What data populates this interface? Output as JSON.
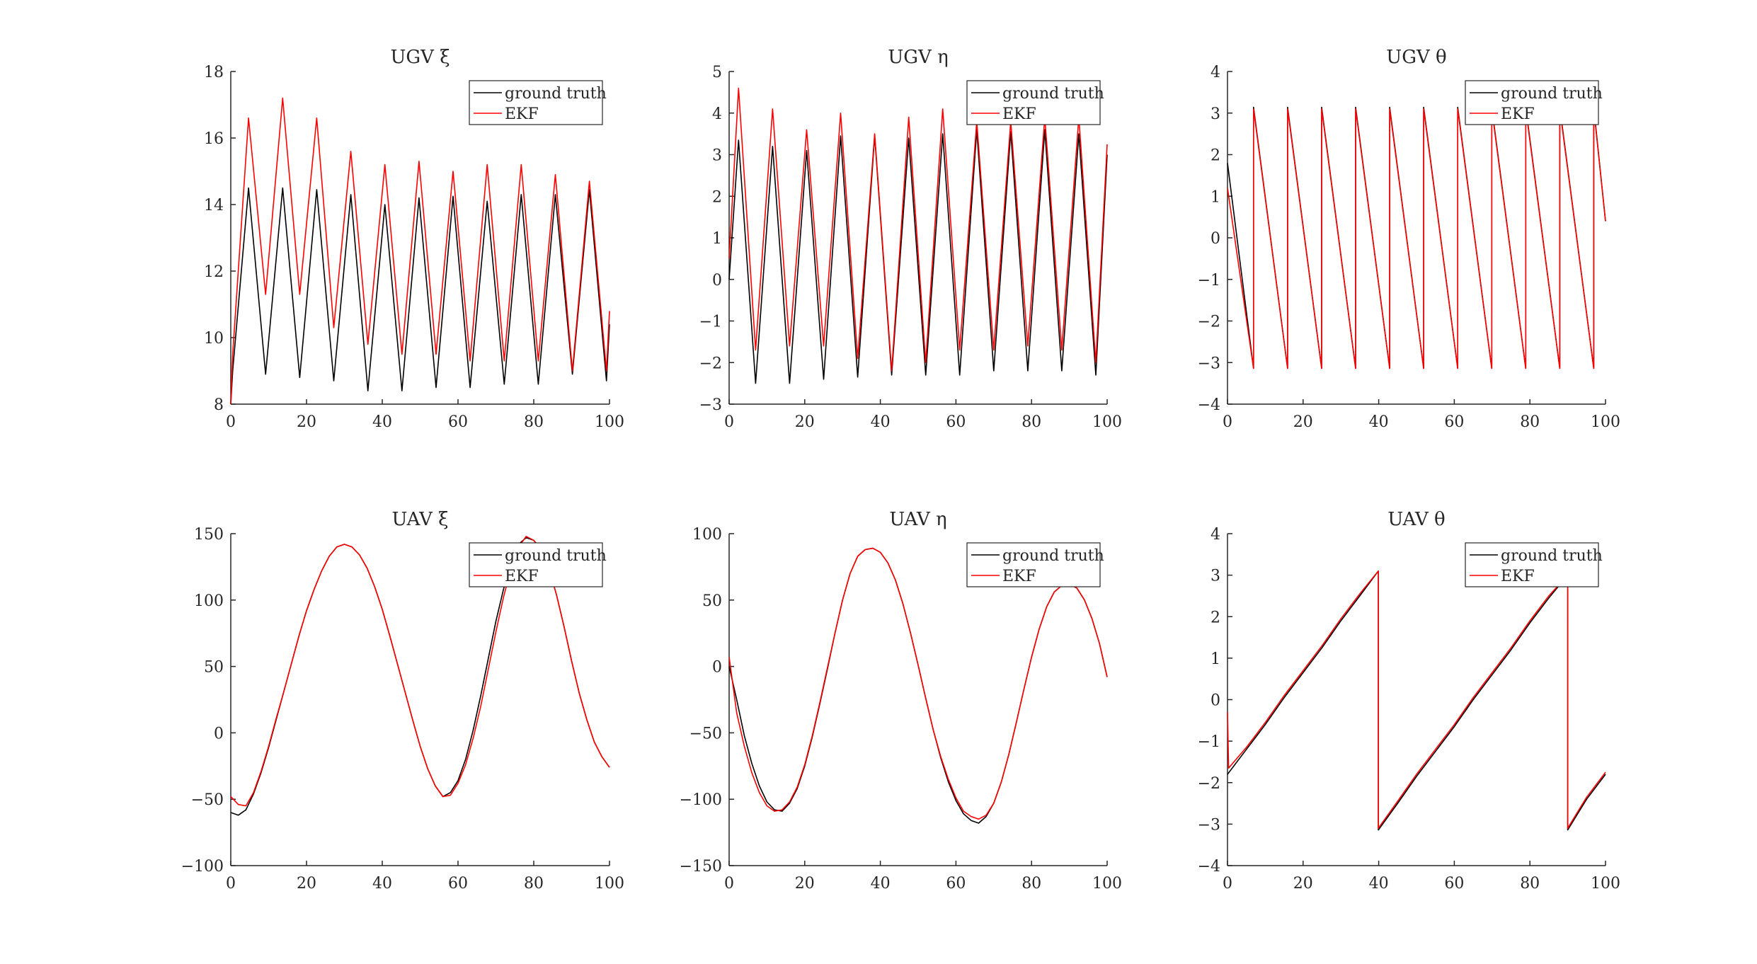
{
  "chart_data": [
    {
      "type": "line",
      "title": "UGV ξ",
      "xlim": [
        0,
        100
      ],
      "ylim": [
        8,
        18
      ],
      "xticks": [
        0,
        20,
        40,
        60,
        80,
        100
      ],
      "yticks": [
        8,
        10,
        12,
        14,
        16,
        18
      ],
      "legend_position": "top-right",
      "series": [
        {
          "name": "ground truth",
          "color": "#000000",
          "x": [
            0,
            0.5,
            4.7,
            9.2,
            13.7,
            18.2,
            22.7,
            27.2,
            31.7,
            36.2,
            40.7,
            45.2,
            49.7,
            54.2,
            58.7,
            63.2,
            67.7,
            72.2,
            76.7,
            81.2,
            85.7,
            90.2,
            94.7,
            99.2,
            100
          ],
          "y": [
            8.0,
            9.0,
            14.5,
            8.9,
            14.5,
            8.8,
            14.45,
            8.7,
            14.3,
            8.4,
            14.0,
            8.4,
            14.2,
            8.5,
            14.25,
            8.5,
            14.1,
            8.6,
            14.3,
            8.6,
            14.3,
            8.9,
            14.45,
            8.7,
            10.4
          ]
        },
        {
          "name": "EKF",
          "color": "#ff0000",
          "x": [
            0,
            0.5,
            4.7,
            9.2,
            13.7,
            18.2,
            22.7,
            27.2,
            31.7,
            36.2,
            40.7,
            45.2,
            49.7,
            54.2,
            58.7,
            63.2,
            67.7,
            72.2,
            76.7,
            81.2,
            85.7,
            90.2,
            94.7,
            99.2,
            100
          ],
          "y": [
            8.0,
            9.5,
            16.6,
            11.3,
            17.2,
            11.3,
            16.6,
            10.3,
            15.6,
            9.8,
            15.2,
            9.5,
            15.3,
            9.5,
            15.0,
            9.3,
            15.2,
            9.3,
            15.2,
            9.3,
            14.9,
            9.0,
            14.7,
            9.0,
            10.8
          ]
        }
      ]
    },
    {
      "type": "line",
      "title": "UGV η",
      "xlim": [
        0,
        100
      ],
      "ylim": [
        -3,
        5
      ],
      "xticks": [
        0,
        20,
        40,
        60,
        80,
        100
      ],
      "yticks": [
        -3,
        -2,
        -1,
        0,
        1,
        2,
        3,
        4,
        5
      ],
      "legend_position": "top-right",
      "series": [
        {
          "name": "ground truth",
          "color": "#000000",
          "x": [
            0,
            2.5,
            7,
            11.5,
            16,
            20.5,
            25,
            29.5,
            34,
            38.5,
            43,
            47.5,
            52,
            56.5,
            61,
            65.5,
            70,
            74.5,
            79,
            83.5,
            88,
            92.5,
            97,
            100
          ],
          "y": [
            0,
            3.35,
            -2.5,
            3.2,
            -2.5,
            3.1,
            -2.4,
            3.45,
            -2.35,
            3.45,
            -2.3,
            3.4,
            -2.3,
            3.5,
            -2.3,
            3.6,
            -2.2,
            3.55,
            -2.2,
            3.6,
            -2.2,
            3.5,
            -2.3,
            3.0
          ]
        },
        {
          "name": "EKF",
          "color": "#ff0000",
          "x": [
            0,
            2.5,
            7,
            11.5,
            16,
            20.5,
            25,
            29.5,
            34,
            38.5,
            43,
            47.5,
            52,
            56.5,
            61,
            65.5,
            70,
            74.5,
            79,
            83.5,
            88,
            92.5,
            97,
            100
          ],
          "y": [
            0.5,
            4.6,
            -1.7,
            4.1,
            -1.6,
            3.6,
            -1.6,
            4.0,
            -1.9,
            3.5,
            -2.2,
            3.9,
            -2.0,
            4.1,
            -1.7,
            3.8,
            -1.7,
            3.8,
            -1.6,
            3.9,
            -1.7,
            3.9,
            -2.0,
            3.25
          ]
        }
      ]
    },
    {
      "type": "line",
      "title": "UGV θ",
      "xlim": [
        0,
        100
      ],
      "ylim": [
        -4,
        4
      ],
      "xticks": [
        0,
        20,
        40,
        60,
        80,
        100
      ],
      "yticks": [
        -4,
        -3,
        -2,
        -1,
        0,
        1,
        2,
        3,
        4
      ],
      "legend_position": "top-right",
      "series": [
        {
          "name": "ground truth",
          "color": "#000000",
          "x": [
            0,
            6.9,
            6.9,
            15.9,
            15.9,
            24.9,
            24.9,
            33.9,
            33.9,
            42.9,
            42.9,
            51.9,
            51.9,
            60.9,
            60.9,
            69.9,
            69.9,
            78.9,
            78.9,
            87.9,
            87.9,
            96.9,
            96.9,
            100
          ],
          "y": [
            1.8,
            -3.14,
            3.14,
            -3.14,
            3.14,
            -3.14,
            3.14,
            -3.14,
            3.14,
            -3.14,
            3.14,
            -3.14,
            3.14,
            -3.14,
            3.14,
            -3.14,
            3.14,
            -3.14,
            3.14,
            -3.14,
            3.14,
            -3.14,
            3.14,
            0.4
          ]
        },
        {
          "name": "EKF",
          "color": "#ff0000",
          "x": [
            0,
            6.9,
            6.9,
            15.9,
            15.9,
            24.9,
            24.9,
            33.9,
            33.9,
            42.9,
            42.9,
            51.9,
            51.9,
            60.9,
            60.9,
            69.9,
            69.9,
            78.9,
            78.9,
            87.9,
            87.9,
            96.9,
            96.9,
            100
          ],
          "y": [
            1.2,
            -3.14,
            3.1,
            -3.14,
            3.1,
            -3.14,
            3.1,
            -3.14,
            3.1,
            -3.14,
            3.1,
            -3.14,
            3.1,
            -3.14,
            3.1,
            -3.14,
            3.1,
            -3.14,
            3.1,
            -3.14,
            3.1,
            -3.14,
            3.1,
            0.4
          ]
        }
      ]
    },
    {
      "type": "line",
      "title": "UAV ξ",
      "xlim": [
        0,
        100
      ],
      "ylim": [
        -100,
        150
      ],
      "xticks": [
        0,
        20,
        40,
        60,
        80,
        100
      ],
      "yticks": [
        -100,
        -50,
        0,
        50,
        100,
        150
      ],
      "legend_position": "top-right",
      "series": [
        {
          "name": "ground truth",
          "color": "#000000",
          "x": [
            0,
            2,
            4,
            6,
            8,
            10,
            12,
            14,
            16,
            18,
            20,
            22,
            24,
            26,
            28,
            30,
            32,
            34,
            36,
            38,
            40,
            42,
            44,
            46,
            48,
            50,
            52,
            54,
            56,
            58,
            60,
            62,
            64,
            66,
            68,
            70,
            72,
            74,
            76,
            78,
            80,
            82,
            84,
            86,
            88,
            90,
            92,
            94,
            96,
            98,
            100
          ],
          "y": [
            -60,
            -62,
            -58,
            -46,
            -30,
            -11,
            10,
            31,
            52,
            73,
            92,
            108,
            122,
            133,
            140,
            142,
            140,
            134,
            124,
            110,
            93,
            73,
            52,
            31,
            10,
            -10,
            -27,
            -40,
            -48,
            -45,
            -36,
            -20,
            2,
            28,
            56,
            84,
            108,
            128,
            142,
            147,
            145,
            138,
            124,
            104,
            80,
            54,
            30,
            10,
            -7,
            -18,
            -26
          ]
        },
        {
          "name": "EKF",
          "color": "#ff0000",
          "x": [
            0,
            2,
            4,
            6,
            8,
            10,
            12,
            14,
            16,
            18,
            20,
            22,
            24,
            26,
            28,
            30,
            32,
            34,
            36,
            38,
            40,
            42,
            44,
            46,
            48,
            50,
            52,
            54,
            56,
            58,
            60,
            62,
            64,
            66,
            68,
            70,
            72,
            74,
            76,
            78,
            80,
            82,
            84,
            86,
            88,
            90,
            92,
            94,
            96,
            98,
            100
          ],
          "y": [
            -48,
            -54,
            -55,
            -45,
            -29,
            -10,
            11,
            31,
            52,
            73,
            92,
            108,
            122,
            133,
            140,
            142,
            140,
            134,
            124,
            110,
            93,
            73,
            52,
            31,
            10,
            -10,
            -27,
            -40,
            -48,
            -47,
            -38,
            -24,
            -4,
            20,
            48,
            76,
            102,
            124,
            140,
            148,
            145,
            137,
            124,
            104,
            80,
            54,
            30,
            10,
            -7,
            -18,
            -26
          ]
        }
      ]
    },
    {
      "type": "line",
      "title": "UAV η",
      "xlim": [
        0,
        100
      ],
      "ylim": [
        -150,
        100
      ],
      "xticks": [
        0,
        20,
        40,
        60,
        80,
        100
      ],
      "yticks": [
        -150,
        -100,
        -50,
        0,
        50,
        100
      ],
      "legend_position": "top-right",
      "series": [
        {
          "name": "ground truth",
          "color": "#000000",
          "x": [
            0,
            2,
            4,
            6,
            8,
            10,
            12,
            14,
            16,
            18,
            20,
            22,
            24,
            26,
            28,
            30,
            32,
            34,
            36,
            38,
            40,
            42,
            44,
            46,
            48,
            50,
            52,
            54,
            56,
            58,
            60,
            62,
            64,
            66,
            68,
            70,
            72,
            74,
            76,
            78,
            80,
            82,
            84,
            86,
            88,
            90,
            92,
            94,
            96,
            98,
            100
          ],
          "y": [
            0,
            -25,
            -52,
            -73,
            -90,
            -102,
            -108,
            -109,
            -103,
            -92,
            -75,
            -53,
            -28,
            -2,
            25,
            50,
            70,
            83,
            88,
            89,
            86,
            78,
            65,
            47,
            25,
            1,
            -24,
            -48,
            -69,
            -87,
            -101,
            -111,
            -116,
            -118,
            -113,
            -103,
            -87,
            -66,
            -42,
            -17,
            7,
            28,
            45,
            56,
            61,
            62,
            59,
            50,
            36,
            17,
            -8
          ]
        },
        {
          "name": "EKF",
          "color": "#ff0000",
          "x": [
            0,
            2,
            4,
            6,
            8,
            10,
            12,
            14,
            16,
            18,
            20,
            22,
            24,
            26,
            28,
            30,
            32,
            34,
            36,
            38,
            40,
            42,
            44,
            46,
            48,
            50,
            52,
            54,
            56,
            58,
            60,
            62,
            64,
            66,
            68,
            70,
            72,
            74,
            76,
            78,
            80,
            82,
            84,
            86,
            88,
            90,
            92,
            94,
            96,
            98,
            100
          ],
          "y": [
            7,
            -35,
            -60,
            -80,
            -95,
            -105,
            -109,
            -108,
            -102,
            -91,
            -74,
            -52,
            -27,
            -1,
            25,
            50,
            70,
            83,
            88,
            89,
            86,
            78,
            65,
            47,
            25,
            1,
            -24,
            -48,
            -68,
            -85,
            -99,
            -109,
            -113,
            -115,
            -112,
            -103,
            -87,
            -66,
            -42,
            -17,
            7,
            28,
            45,
            56,
            61,
            62,
            59,
            50,
            36,
            17,
            -8
          ]
        }
      ]
    },
    {
      "type": "line",
      "title": "UAV θ",
      "xlim": [
        0,
        100
      ],
      "ylim": [
        -4,
        4
      ],
      "xticks": [
        0,
        20,
        40,
        60,
        80,
        100
      ],
      "yticks": [
        -4,
        -3,
        -2,
        -1,
        0,
        1,
        2,
        3,
        4
      ],
      "legend_position": "top-right",
      "series": [
        {
          "name": "ground truth",
          "color": "#000000",
          "x": [
            0,
            5,
            10,
            15,
            20,
            25,
            30,
            35,
            39.9,
            39.9,
            45,
            50,
            55,
            60,
            65,
            70,
            75,
            80,
            85,
            90,
            90,
            95,
            100
          ],
          "y": [
            -1.8,
            -1.2,
            -0.6,
            0.05,
            0.65,
            1.25,
            1.9,
            2.5,
            3.1,
            -3.14,
            -2.5,
            -1.85,
            -1.25,
            -0.65,
            0.0,
            0.6,
            1.2,
            1.85,
            2.45,
            3.0,
            -3.14,
            -2.4,
            -1.8
          ]
        },
        {
          "name": "EKF",
          "color": "#ff0000",
          "x": [
            0,
            0.3,
            5,
            10,
            15,
            20,
            25,
            30,
            35,
            39.9,
            39.9,
            45,
            50,
            55,
            60,
            65,
            70,
            75,
            80,
            85,
            90,
            90,
            95,
            100
          ],
          "y": [
            -0.3,
            -1.65,
            -1.15,
            -0.55,
            0.1,
            0.7,
            1.3,
            1.95,
            2.55,
            3.1,
            -3.1,
            -2.45,
            -1.8,
            -1.2,
            -0.6,
            0.05,
            0.65,
            1.25,
            1.9,
            2.5,
            3.0,
            -3.1,
            -2.35,
            -1.75
          ]
        }
      ]
    }
  ]
}
